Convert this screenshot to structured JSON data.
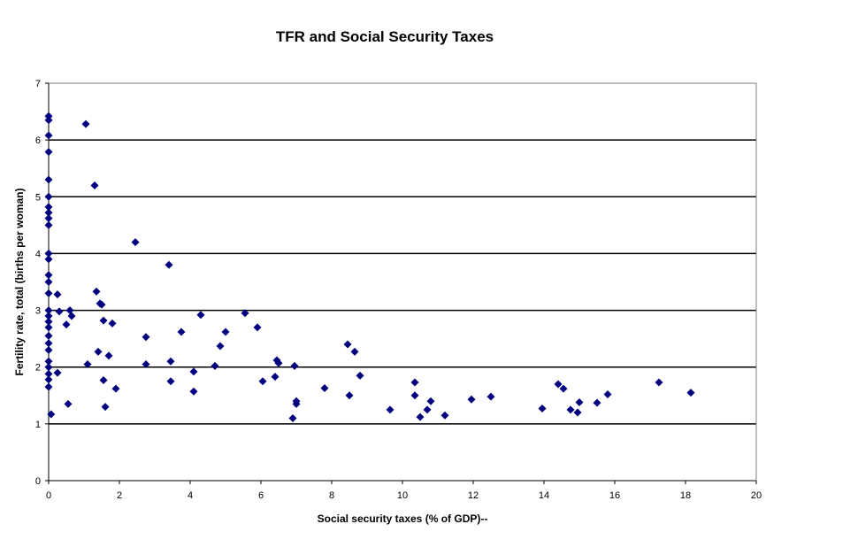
{
  "chart_data": {
    "type": "scatter",
    "title": "TFR and Social Security Taxes",
    "xlabel": "Social security taxes (% of GDP)--",
    "ylabel": "Fertility rate, total (births per woman)",
    "xlim": [
      0,
      20
    ],
    "ylim": [
      0,
      7
    ],
    "x_ticks": [
      0,
      2,
      4,
      6,
      8,
      10,
      12,
      14,
      16,
      18,
      20
    ],
    "y_ticks": [
      0,
      1,
      2,
      3,
      4,
      5,
      6,
      7
    ],
    "grid": "horizontal",
    "legend": "none",
    "marker_color": "#00007f",
    "points": [
      [
        0,
        6.42
      ],
      [
        0,
        6.35
      ],
      [
        0,
        6.08
      ],
      [
        0,
        5.79
      ],
      [
        0,
        5.3
      ],
      [
        0,
        5.0
      ],
      [
        0,
        4.82
      ],
      [
        0,
        4.72
      ],
      [
        0,
        4.62
      ],
      [
        0,
        4.5
      ],
      [
        0,
        4.0
      ],
      [
        0,
        3.9
      ],
      [
        0,
        3.62
      ],
      [
        0,
        3.5
      ],
      [
        0,
        3.3
      ],
      [
        0,
        3.0
      ],
      [
        0,
        2.9
      ],
      [
        0,
        2.8
      ],
      [
        0,
        2.7
      ],
      [
        0,
        2.55
      ],
      [
        0,
        2.42
      ],
      [
        0,
        2.3
      ],
      [
        0,
        2.1
      ],
      [
        0,
        2.0
      ],
      [
        0,
        1.88
      ],
      [
        0,
        1.78
      ],
      [
        0,
        1.65
      ],
      [
        0.07,
        1.17
      ],
      [
        0.25,
        3.28
      ],
      [
        0.3,
        2.98
      ],
      [
        0.25,
        1.9
      ],
      [
        0.5,
        2.75
      ],
      [
        0.55,
        1.35
      ],
      [
        0.6,
        3.0
      ],
      [
        0.65,
        2.9
      ],
      [
        1.05,
        6.28
      ],
      [
        1.1,
        2.05
      ],
      [
        1.3,
        5.2
      ],
      [
        1.35,
        3.33
      ],
      [
        1.45,
        3.12
      ],
      [
        1.5,
        3.1
      ],
      [
        1.4,
        2.27
      ],
      [
        1.55,
        2.82
      ],
      [
        1.55,
        1.77
      ],
      [
        1.6,
        1.3
      ],
      [
        1.7,
        2.2
      ],
      [
        1.8,
        2.77
      ],
      [
        1.9,
        1.62
      ],
      [
        2.45,
        4.2
      ],
      [
        2.75,
        2.53
      ],
      [
        2.75,
        2.05
      ],
      [
        3.4,
        3.8
      ],
      [
        3.45,
        2.1
      ],
      [
        3.45,
        1.75
      ],
      [
        3.75,
        2.62
      ],
      [
        4.1,
        1.92
      ],
      [
        4.1,
        1.57
      ],
      [
        4.3,
        2.92
      ],
      [
        4.7,
        2.02
      ],
      [
        4.85,
        2.37
      ],
      [
        5.0,
        2.62
      ],
      [
        5.55,
        2.95
      ],
      [
        5.9,
        2.7
      ],
      [
        6.05,
        1.75
      ],
      [
        6.4,
        1.83
      ],
      [
        6.45,
        2.12
      ],
      [
        6.5,
        2.07
      ],
      [
        6.9,
        1.1
      ],
      [
        6.95,
        2.02
      ],
      [
        7.0,
        1.4
      ],
      [
        7.0,
        1.35
      ],
      [
        7.8,
        1.63
      ],
      [
        8.45,
        2.4
      ],
      [
        8.5,
        1.5
      ],
      [
        8.65,
        2.27
      ],
      [
        8.8,
        1.85
      ],
      [
        9.65,
        1.25
      ],
      [
        10.35,
        1.73
      ],
      [
        10.35,
        1.5
      ],
      [
        10.5,
        1.12
      ],
      [
        10.7,
        1.25
      ],
      [
        10.8,
        1.4
      ],
      [
        11.2,
        1.15
      ],
      [
        11.95,
        1.43
      ],
      [
        12.5,
        1.48
      ],
      [
        13.95,
        1.27
      ],
      [
        14.4,
        1.7
      ],
      [
        14.55,
        1.62
      ],
      [
        14.75,
        1.25
      ],
      [
        14.95,
        1.2
      ],
      [
        15.0,
        1.38
      ],
      [
        15.5,
        1.37
      ],
      [
        15.8,
        1.52
      ],
      [
        17.25,
        1.73
      ],
      [
        18.15,
        1.55
      ]
    ]
  }
}
